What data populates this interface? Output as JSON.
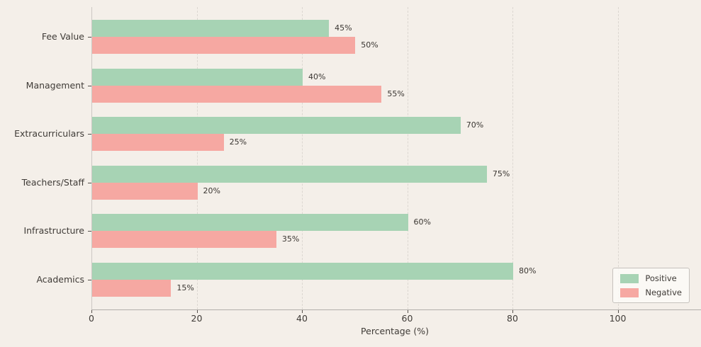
{
  "chart_data": {
    "type": "bar",
    "orientation": "horizontal",
    "title": "",
    "xlabel": "Percentage (%)",
    "ylabel": "",
    "categories": [
      "Fee Value",
      "Management",
      "Extracurriculars",
      "Teachers/Staff",
      "Infrastructure",
      "Academics"
    ],
    "series": [
      {
        "name": "Positive",
        "color": "#a7d3b4",
        "values": [
          45,
          40,
          70,
          75,
          60,
          80
        ]
      },
      {
        "name": "Negative",
        "color": "#f6a8a2",
        "values": [
          50,
          55,
          25,
          20,
          35,
          15
        ]
      }
    ],
    "value_suffix": "%",
    "xticks": [
      0,
      20,
      40,
      60,
      80,
      100
    ],
    "xlim": [
      0,
      115
    ],
    "grid": "vertical-dashed",
    "legend_position": "lower right"
  },
  "colors": {
    "background": "#f4efe9",
    "positive": "#a7d3b4",
    "negative": "#f6a8a2",
    "gridline": "#dcd7d1",
    "text": "#3f3b37"
  }
}
